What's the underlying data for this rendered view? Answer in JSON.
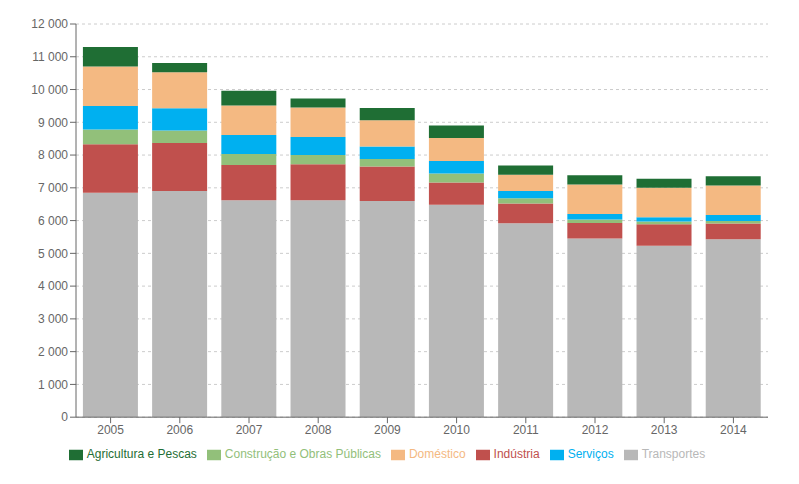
{
  "chart_data": {
    "type": "bar",
    "stacked": true,
    "categories": [
      "2005",
      "2006",
      "2007",
      "2008",
      "2009",
      "2010",
      "2011",
      "2012",
      "2013",
      "2014"
    ],
    "series": [
      {
        "name": "Transportes",
        "color": "#b8b8b8",
        "values": [
          6850,
          6900,
          6620,
          6620,
          6600,
          6480,
          5920,
          5450,
          5230,
          5430
        ]
      },
      {
        "name": "Indústria",
        "color": "#c0504d",
        "values": [
          1480,
          1470,
          1080,
          1100,
          1050,
          680,
          600,
          480,
          660,
          480
        ]
      },
      {
        "name": "Construção e Obras Públicas",
        "color": "#92c07a",
        "values": [
          450,
          380,
          330,
          280,
          230,
          280,
          160,
          100,
          80,
          80
        ]
      },
      {
        "name": "Serviços",
        "color": "#00b0f0",
        "values": [
          720,
          680,
          580,
          550,
          380,
          380,
          220,
          170,
          130,
          180
        ]
      },
      {
        "name": "Doméstico",
        "color": "#f4b982",
        "values": [
          1200,
          1100,
          900,
          900,
          800,
          700,
          500,
          900,
          900,
          900
        ]
      },
      {
        "name": "Agricultura e Pescas",
        "color": "#1f6e34",
        "values": [
          600,
          280,
          450,
          280,
          380,
          380,
          280,
          280,
          280,
          280
        ]
      }
    ],
    "ylim": [
      0,
      12000
    ],
    "yticks": [
      0,
      {
        "value": 1000,
        "label": "1 000"
      },
      {
        "value": 2000,
        "label": "2 000"
      },
      {
        "value": 3000,
        "label": "3 000"
      },
      {
        "value": 4000,
        "label": "4 000"
      },
      {
        "value": 5000,
        "label": "5 000"
      },
      {
        "value": 6000,
        "label": "6 000"
      },
      {
        "value": 7000,
        "label": "7 000"
      },
      {
        "value": 8000,
        "label": "8 000"
      },
      {
        "value": 9000,
        "label": "9 000"
      },
      {
        "value": 10000,
        "label": "10 000"
      },
      {
        "value": 11000,
        "label": "11 000"
      },
      {
        "value": 12000,
        "label": "12 000"
      }
    ],
    "grid": true,
    "legend": "bottom"
  }
}
